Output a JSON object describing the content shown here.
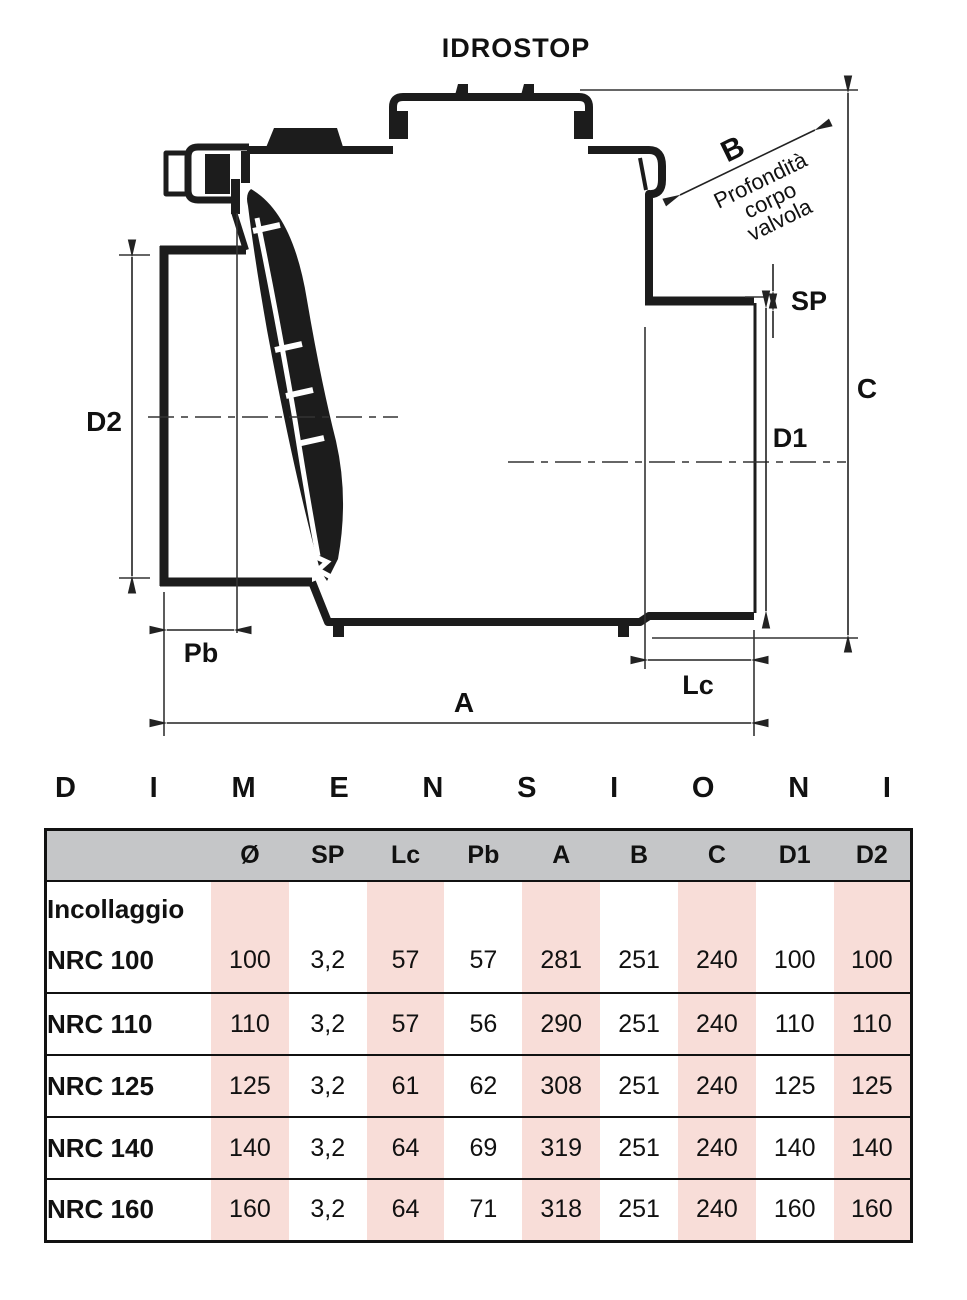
{
  "drawing": {
    "title": "IDROSTOP",
    "dim_b": "B",
    "b_note": [
      "Profondità",
      "corpo",
      "valvola"
    ],
    "dim_sp": "SP",
    "dim_c": "C",
    "dim_d1": "D1",
    "dim_d2": "D2",
    "dim_pb": "Pb",
    "dim_a": "A",
    "dim_lc": "Lc"
  },
  "section_title": "DIMENSIONI",
  "table": {
    "columns": [
      "",
      "Ø",
      "SP",
      "Lc",
      "Pb",
      "A",
      "B",
      "C",
      "D1",
      "D2"
    ],
    "group_label": "Incollaggio",
    "rows": [
      {
        "label": "NRC 100",
        "values": [
          "100",
          "3,2",
          "57",
          "57",
          "281",
          "251",
          "240",
          "100",
          "100"
        ]
      },
      {
        "label": "NRC 110",
        "values": [
          "110",
          "3,2",
          "57",
          "56",
          "290",
          "251",
          "240",
          "110",
          "110"
        ]
      },
      {
        "label": "NRC 125",
        "values": [
          "125",
          "3,2",
          "61",
          "62",
          "308",
          "251",
          "240",
          "125",
          "125"
        ]
      },
      {
        "label": "NRC 140",
        "values": [
          "140",
          "3,2",
          "64",
          "69",
          "319",
          "251",
          "240",
          "140",
          "140"
        ]
      },
      {
        "label": "NRC 160",
        "values": [
          "160",
          "3,2",
          "64",
          "71",
          "318",
          "251",
          "240",
          "160",
          "160"
        ]
      }
    ]
  },
  "colors": {
    "header_bg": "#c5c6c8",
    "stripe_pink": "#f8ddd8",
    "ink": "#1c1c1c"
  }
}
